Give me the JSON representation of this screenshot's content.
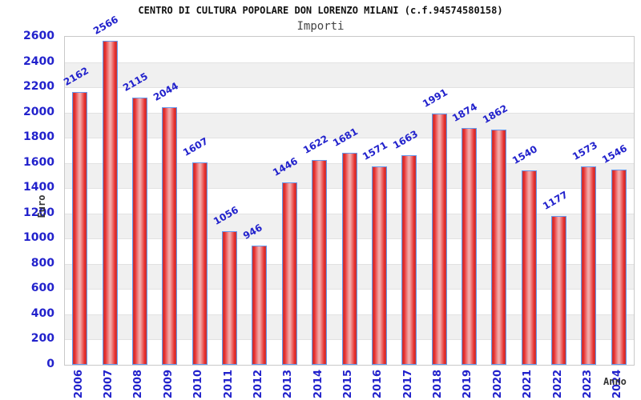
{
  "chart_data": {
    "type": "bar",
    "title": "CENTRO DI CULTURA POPOLARE DON LORENZO MILANI (c.f.94574580158)",
    "subtitle": "Importi",
    "xlabel": "Anno",
    "ylabel": "Euro",
    "categories": [
      "2006",
      "2007",
      "2008",
      "2009",
      "2010",
      "2011",
      "2012",
      "2013",
      "2014",
      "2015",
      "2016",
      "2017",
      "2018",
      "2019",
      "2020",
      "2021",
      "2022",
      "2023",
      "2024"
    ],
    "values": [
      2162,
      2566,
      2115,
      2044,
      1607,
      1056,
      946,
      1446,
      1622,
      1681,
      1571,
      1663,
      1991,
      1874,
      1862,
      1540,
      1177,
      1573,
      1546
    ],
    "ylim": [
      0,
      2600
    ],
    "ytick_step": 200,
    "grid": "horizontal-bands-alternating",
    "legend": "none",
    "colors": {
      "label_blue": "#2222cc",
      "bar_border": "#6699ee",
      "bar_red": "#e62525",
      "bar_edge_red": "#b94040",
      "bar_highlight": "#f2a9a9",
      "band_gray": "#f0f0f0",
      "grid_line": "#e2e2e2",
      "plot_border": "#c9c9c9",
      "title_color": "#111111",
      "subtitle_color": "#444444",
      "axis_title_color": "#333333"
    }
  }
}
